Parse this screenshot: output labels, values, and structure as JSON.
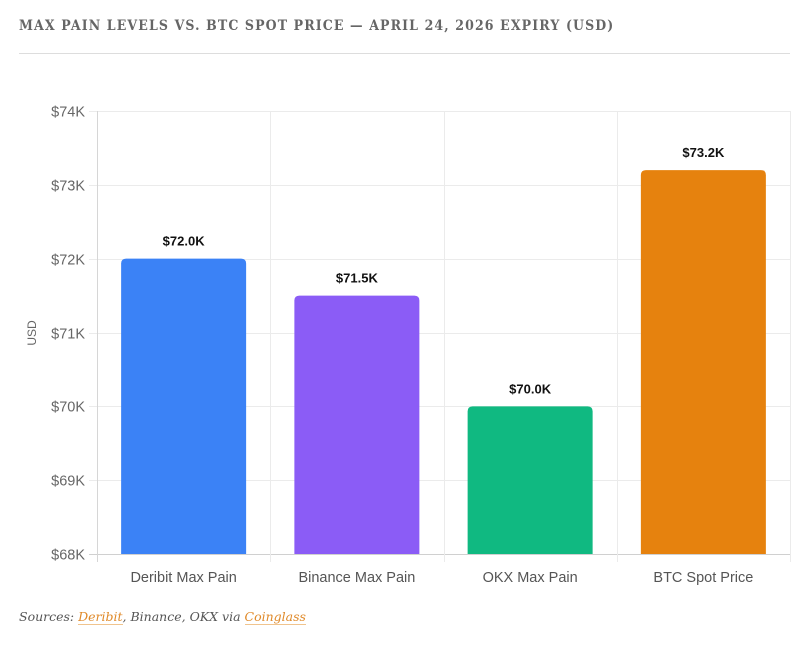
{
  "title": "MAX PAIN LEVELS VS. BTC SPOT PRICE — APRIL 24, 2026 EXPIRY (USD)",
  "source": {
    "prefix": "Sources: ",
    "link1": "Deribit",
    "middle": ", Binance, OKX via ",
    "link2": "Coinglass"
  },
  "chart_data": {
    "type": "bar",
    "title": "MAX PAIN LEVELS VS. BTC SPOT PRICE — APRIL 24, 2026 EXPIRY (USD)",
    "xlabel": "",
    "ylabel": "USD",
    "ylim": [
      68000,
      74000
    ],
    "yticks": [
      68000,
      69000,
      70000,
      71000,
      72000,
      73000,
      74000
    ],
    "ytick_labels": [
      "$68K",
      "$69K",
      "$70K",
      "$71K",
      "$72K",
      "$73K",
      "$74K"
    ],
    "grid": true,
    "categories": [
      "Deribit Max Pain",
      "Binance Max Pain",
      "OKX Max Pain",
      "BTC Spot Price"
    ],
    "values": [
      72000,
      71500,
      70000,
      73200
    ],
    "data_labels": [
      "$72.0K",
      "$71.5K",
      "$70.0K",
      "$73.2K"
    ],
    "colors": [
      "#3b82f6",
      "#8b5cf6",
      "#10b981",
      "#e6820e"
    ]
  }
}
